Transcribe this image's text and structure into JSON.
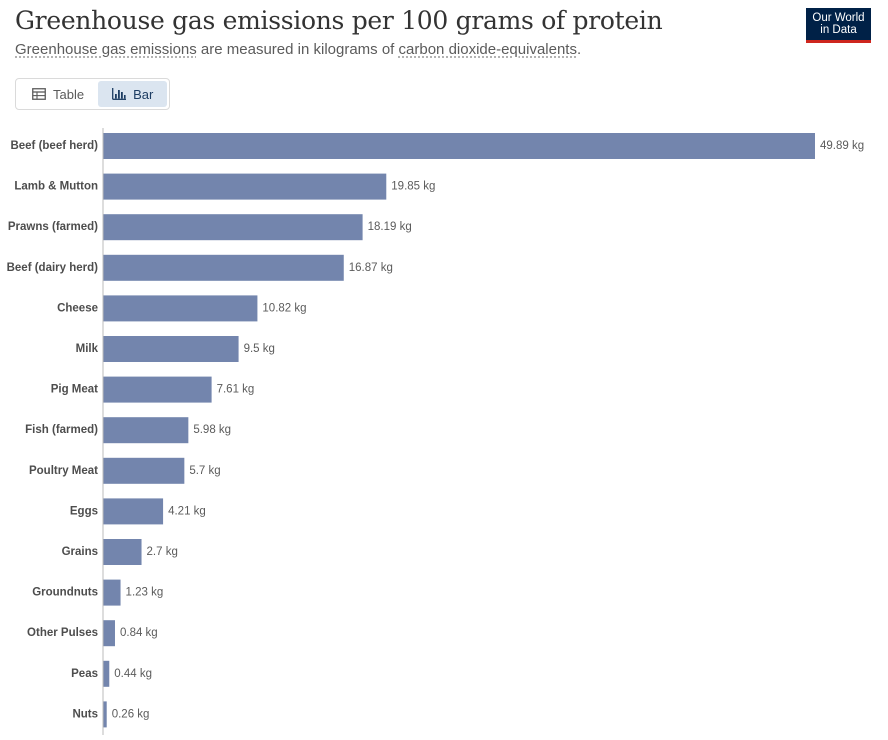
{
  "header": {
    "title": "Greenhouse gas emissions per 100 grams of protein",
    "subtitle_term1": "Greenhouse gas emissions",
    "subtitle_mid": " are measured in kilograms of ",
    "subtitle_term2": "carbon dioxide-equivalents",
    "subtitle_end": "."
  },
  "logo": {
    "line1": "Our World",
    "line2": "in Data"
  },
  "tabs": [
    {
      "label": "Table",
      "icon": "table-icon",
      "active": false
    },
    {
      "label": "Bar",
      "icon": "bar-chart-icon",
      "active": true
    }
  ],
  "colors": {
    "bar": "#7385ad",
    "logo_bg": "#002147",
    "logo_accent": "#ce261e",
    "active_tab_bg": "#dbe5f0"
  },
  "chart_data": {
    "type": "bar",
    "orientation": "horizontal",
    "unit": "kg",
    "categories": [
      "Beef (beef herd)",
      "Lamb & Mutton",
      "Prawns (farmed)",
      "Beef (dairy herd)",
      "Cheese",
      "Milk",
      "Pig Meat",
      "Fish (farmed)",
      "Poultry Meat",
      "Eggs",
      "Grains",
      "Groundnuts",
      "Other Pulses",
      "Peas",
      "Nuts"
    ],
    "values": [
      49.89,
      19.85,
      18.19,
      16.87,
      10.82,
      9.5,
      7.61,
      5.98,
      5.7,
      4.21,
      2.7,
      1.23,
      0.84,
      0.44,
      0.26
    ],
    "value_labels": [
      "49.89 kg",
      "19.85 kg",
      "18.19 kg",
      "16.87 kg",
      "10.82 kg",
      "9.5 kg",
      "7.61 kg",
      "5.98 kg",
      "5.7 kg",
      "4.21 kg",
      "2.7 kg",
      "1.23 kg",
      "0.84 kg",
      "0.44 kg",
      "0.26 kg"
    ],
    "xlim": [
      0,
      49.89
    ],
    "grid": false
  }
}
